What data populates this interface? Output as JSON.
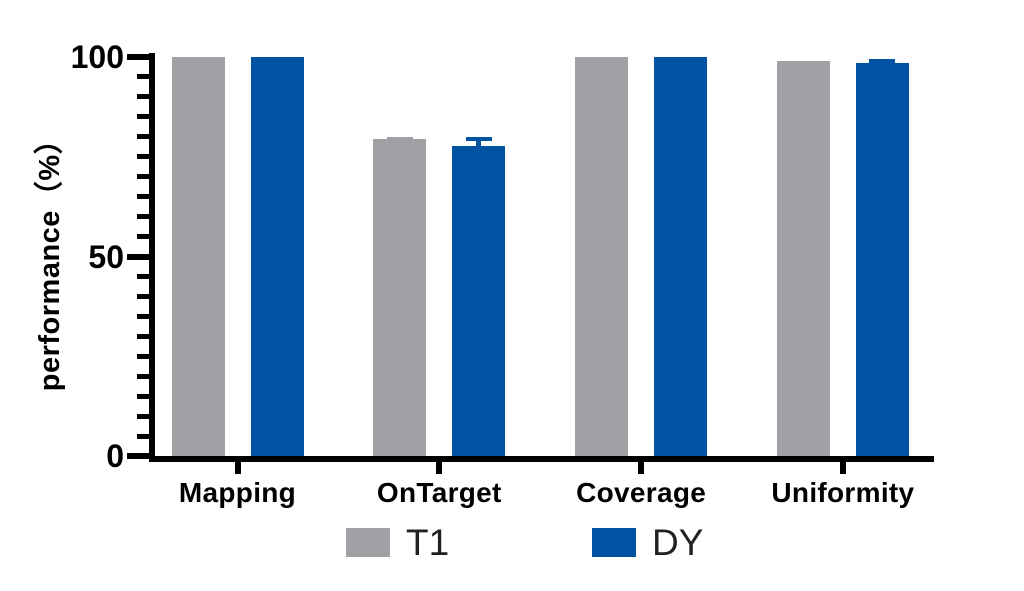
{
  "chart_data": {
    "type": "bar",
    "title": "",
    "ylabel": "performance（%）",
    "xlabel": "",
    "categories": [
      "Mapping",
      "OnTarget",
      "Coverage",
      "Uniformity"
    ],
    "series": [
      {
        "name": "T1",
        "color": "#a0a1a5",
        "values": [
          100,
          79.4,
          100,
          99.0
        ],
        "errors": [
          0,
          0.5,
          0,
          0
        ]
      },
      {
        "name": "DY",
        "color": "#0052a2",
        "values": [
          100,
          77.7,
          100,
          98.5
        ],
        "errors": [
          0,
          2.2,
          0,
          0.9
        ]
      }
    ],
    "ylim": [
      0,
      100
    ],
    "yticks": [
      0,
      50,
      100
    ],
    "ytick_labels": [
      "0",
      "50",
      "100"
    ],
    "minor_tick_interval": 5,
    "grid": false,
    "legend_position": "bottom",
    "axis_color": "#000000",
    "background_color": "#ffffff",
    "error_bar_style": "top-cap"
  },
  "legend": {
    "items": [
      {
        "label": "T1",
        "color": "#a0a1a5"
      },
      {
        "label": "DY",
        "color": "#0052a2"
      }
    ]
  }
}
